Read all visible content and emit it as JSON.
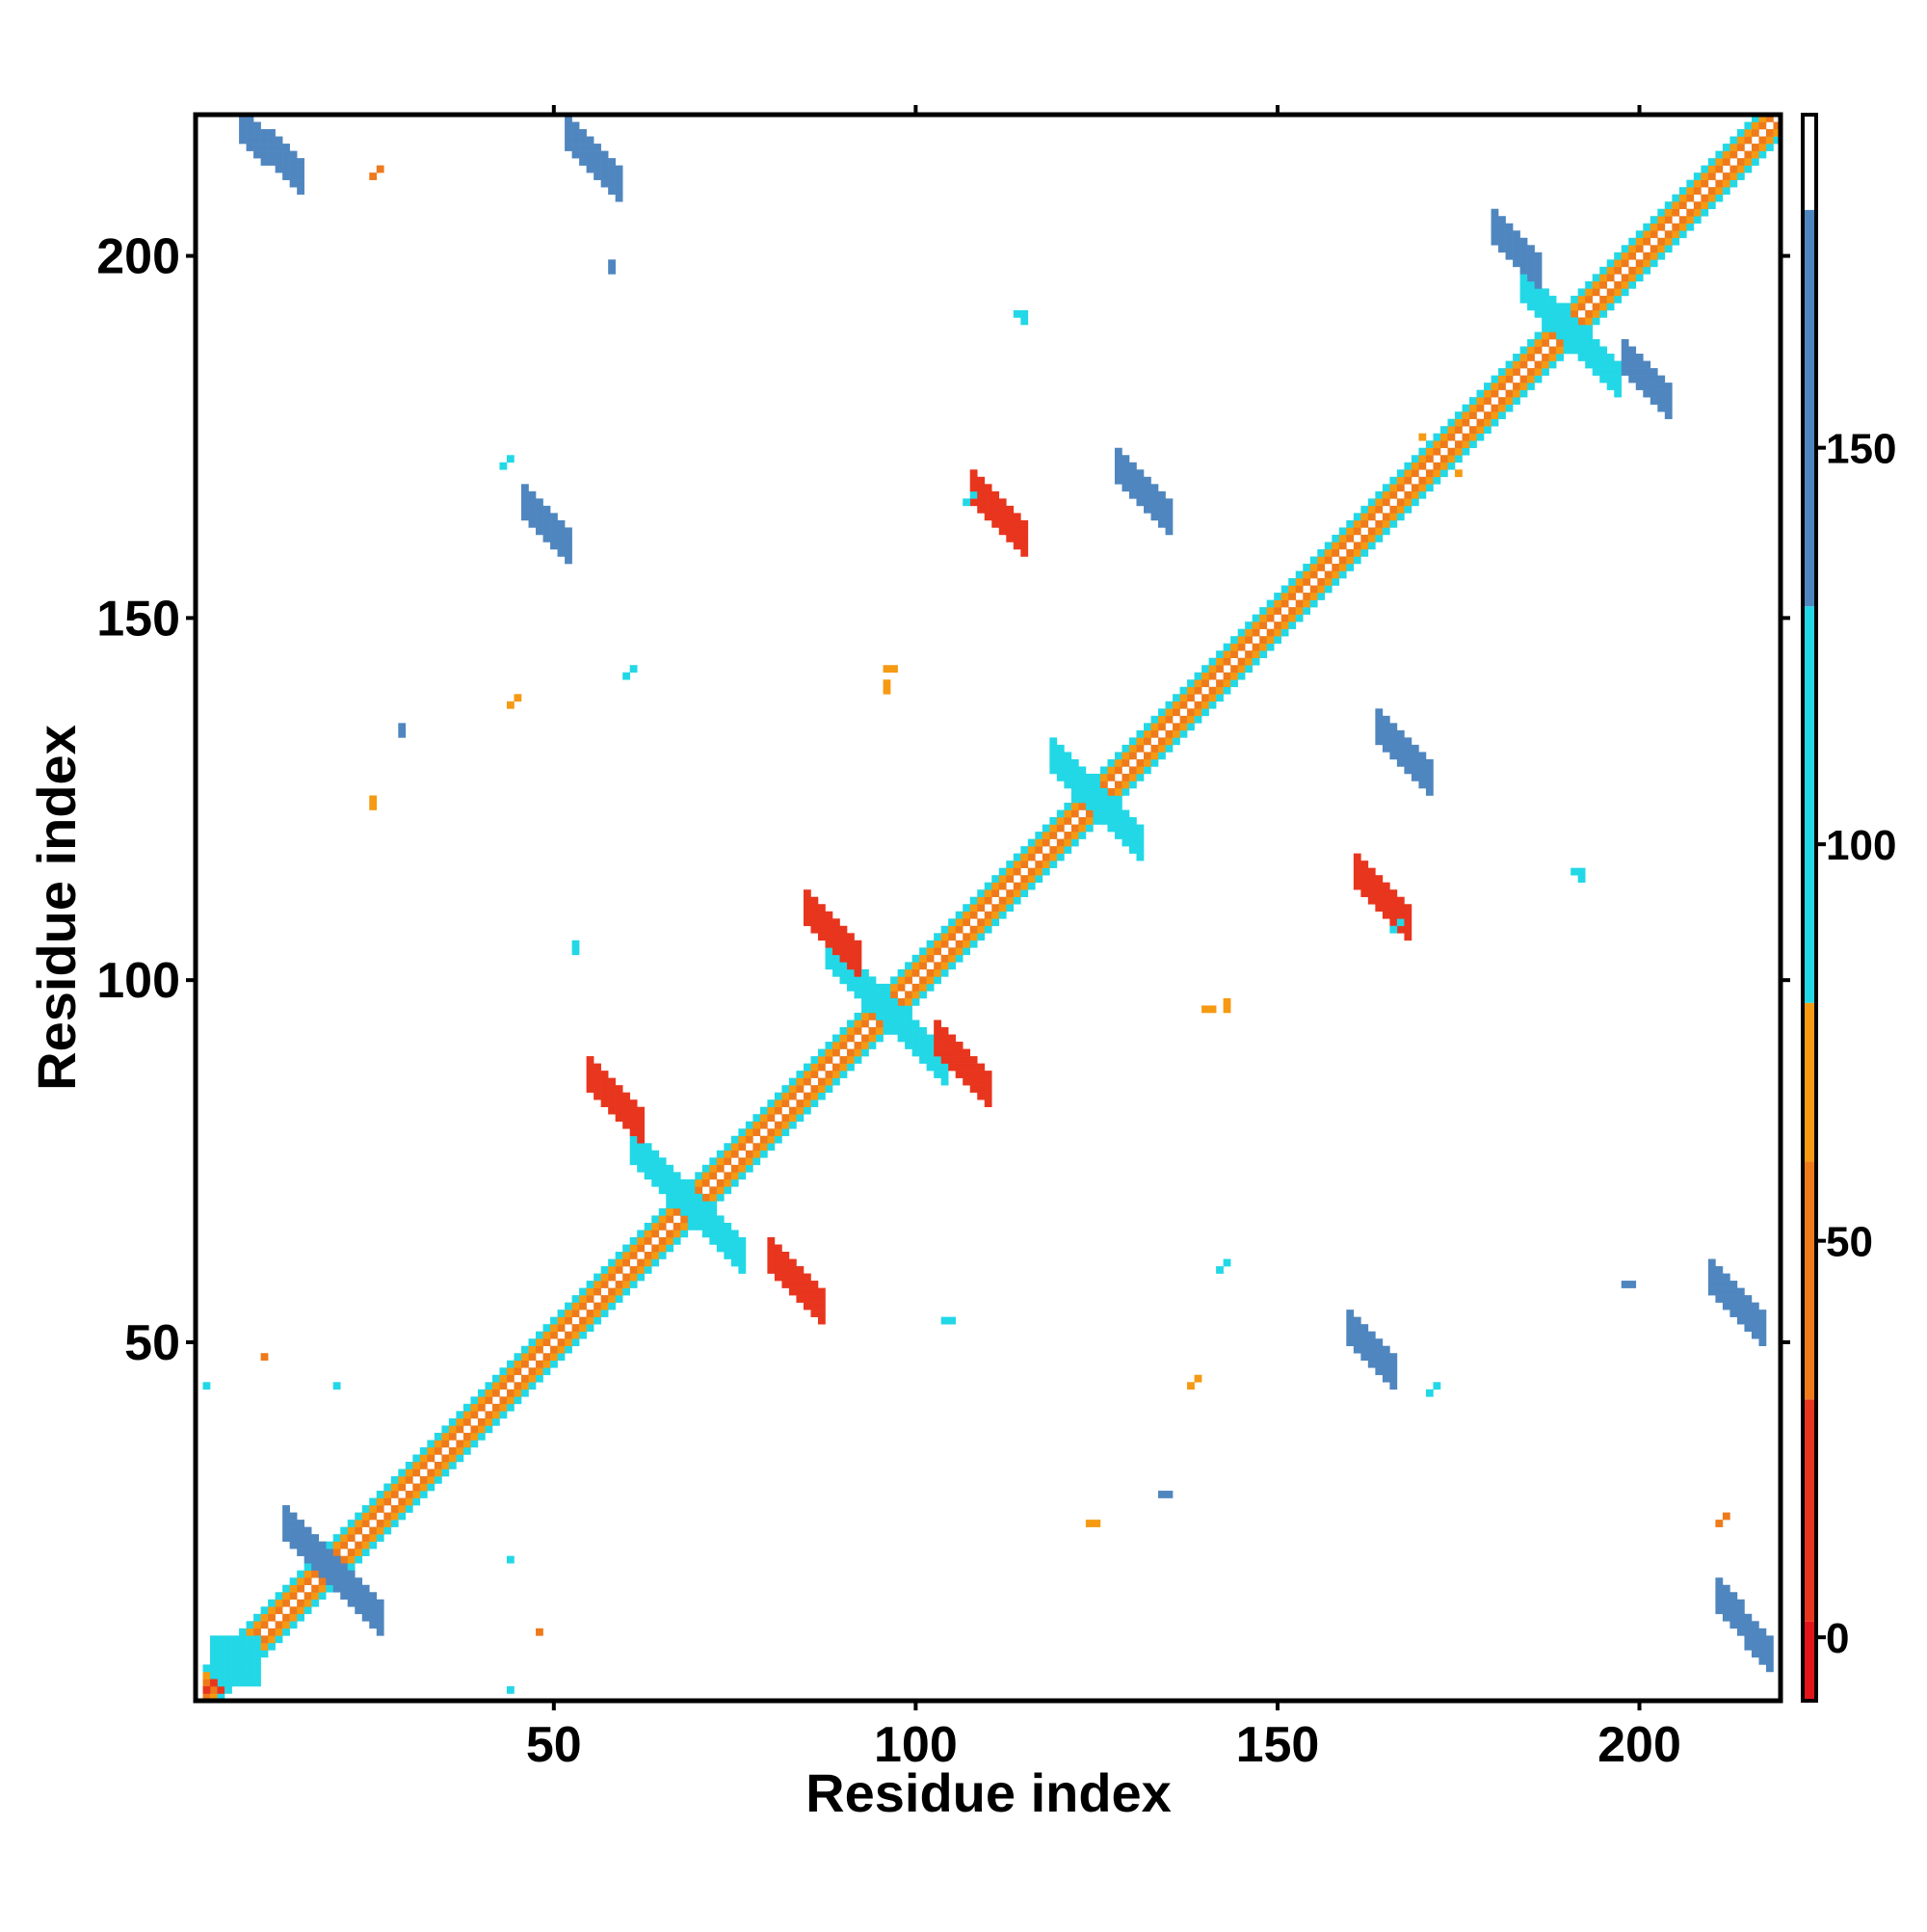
{
  "chart_data": {
    "type": "heatmap",
    "title": "",
    "xlabel": "Residue index",
    "ylabel": "Residue index",
    "xlim": [
      1,
      219
    ],
    "ylim": [
      1,
      219
    ],
    "x_ticks": [
      50,
      100,
      150,
      200
    ],
    "y_ticks": [
      50,
      100,
      150,
      200
    ],
    "colorbar": {
      "ticks": [
        0,
        50,
        100,
        150
      ],
      "range": [
        -8,
        192
      ],
      "bands": [
        {
          "from": -8,
          "to": 2,
          "color": "#e4141b"
        },
        {
          "from": 2,
          "to": 30,
          "color": "#e8351e"
        },
        {
          "from": 30,
          "to": 60,
          "color": "#ee7a1c"
        },
        {
          "from": 60,
          "to": 80,
          "color": "#f59a12"
        },
        {
          "from": 80,
          "to": 130,
          "color": "#22d8e6"
        },
        {
          "from": 130,
          "to": 180,
          "color": "#4f86bf"
        },
        {
          "from": 180,
          "to": 192,
          "color": "#ffffff"
        }
      ]
    },
    "grid": false,
    "legend": "colorbar-right",
    "diagonal": {
      "start": 2,
      "end": 219,
      "band_values": [
        5,
        45,
        70,
        100
      ]
    },
    "features": [
      {
        "shape": "anti",
        "i0": 13,
        "i1": 26,
        "j": 19,
        "value": 150,
        "width": 2
      },
      {
        "shape": "block",
        "i0": 3,
        "i1": 9,
        "j0": 3,
        "j1": 9,
        "value": 105
      },
      {
        "shape": "anti",
        "i0": 61,
        "i1": 76,
        "j": 69,
        "value": 115,
        "width": 2
      },
      {
        "shape": "anti",
        "i0": 88,
        "i1": 104,
        "j": 96,
        "value": 115,
        "width": 2
      },
      {
        "shape": "anti",
        "i0": 119,
        "i1": 131,
        "j": 125,
        "value": 115,
        "width": 2
      },
      {
        "shape": "anti",
        "i0": 184,
        "i1": 197,
        "j": 190,
        "value": 110,
        "width": 2
      },
      {
        "shape": "band",
        "i0": 7,
        "i1": 15,
        "j0": 211,
        "j1": 218,
        "value": 150,
        "width": 2
      },
      {
        "shape": "band",
        "i0": 52,
        "i1": 59,
        "j0": 210,
        "j1": 217,
        "value": 150,
        "width": 2
      },
      {
        "shape": "band",
        "i0": 210,
        "i1": 217,
        "j0": 52,
        "j1": 59,
        "value": 150,
        "width": 2
      },
      {
        "shape": "band",
        "i0": 211,
        "i1": 218,
        "j0": 7,
        "j1": 15,
        "value": 150,
        "width": 2
      },
      {
        "shape": "band",
        "i0": 46,
        "i1": 52,
        "j0": 160,
        "j1": 166,
        "value": 145,
        "width": 2
      },
      {
        "shape": "band",
        "i0": 160,
        "i1": 166,
        "j0": 46,
        "j1": 52,
        "value": 145,
        "width": 2
      },
      {
        "shape": "band",
        "i0": 128,
        "i1": 135,
        "j0": 164,
        "j1": 171,
        "value": 150,
        "width": 2
      },
      {
        "shape": "band",
        "i0": 164,
        "i1": 171,
        "j0": 128,
        "j1": 135,
        "value": 150,
        "width": 2
      },
      {
        "shape": "band",
        "i0": 180,
        "i1": 186,
        "j0": 198,
        "j1": 204,
        "value": 145,
        "width": 2
      },
      {
        "shape": "band",
        "i0": 198,
        "i1": 204,
        "j0": 180,
        "j1": 186,
        "value": 145,
        "width": 2
      },
      {
        "shape": "band",
        "i0": 103,
        "i1": 110,
        "j0": 85,
        "j1": 92,
        "value": 10,
        "width": 2
      },
      {
        "shape": "band",
        "i0": 85,
        "i1": 92,
        "j0": 103,
        "j1": 110,
        "value": 10,
        "width": 2
      },
      {
        "shape": "band",
        "i0": 80,
        "i1": 87,
        "j0": 55,
        "j1": 62,
        "value": 10,
        "width": 2
      },
      {
        "shape": "band",
        "i0": 55,
        "i1": 62,
        "j0": 80,
        "j1": 87,
        "value": 10,
        "width": 2
      },
      {
        "shape": "band",
        "i0": 161,
        "i1": 168,
        "j0": 108,
        "j1": 115,
        "value": 10,
        "width": 2
      },
      {
        "shape": "band",
        "i0": 108,
        "i1": 115,
        "j0": 161,
        "j1": 168,
        "value": 10,
        "width": 2
      }
    ],
    "points": [
      [
        2,
        2,
        5
      ],
      [
        3,
        3,
        10
      ],
      [
        4,
        2,
        20
      ],
      [
        44,
        2,
        105
      ],
      [
        2,
        44,
        105
      ],
      [
        58,
        198,
        150
      ],
      [
        58,
        199,
        150
      ],
      [
        198,
        58,
        150
      ],
      [
        199,
        58,
        150
      ],
      [
        114,
        192,
        110
      ],
      [
        115,
        192,
        110
      ],
      [
        192,
        114,
        110
      ],
      [
        192,
        115,
        110
      ],
      [
        124,
        25,
        60
      ],
      [
        125,
        25,
        60
      ],
      [
        25,
        124,
        60
      ],
      [
        25,
        125,
        60
      ],
      [
        138,
        44,
        60
      ],
      [
        139,
        45,
        60
      ],
      [
        44,
        138,
        60
      ],
      [
        45,
        139,
        60
      ],
      [
        171,
        43,
        100
      ],
      [
        172,
        44,
        100
      ],
      [
        43,
        171,
        100
      ],
      [
        44,
        172,
        100
      ],
      [
        140,
        96,
        60
      ],
      [
        141,
        96,
        60
      ],
      [
        96,
        140,
        60
      ],
      [
        96,
        141,
        60
      ],
      [
        104,
        53,
        100
      ],
      [
        105,
        53,
        100
      ],
      [
        53,
        104,
        100
      ],
      [
        53,
        105,
        100
      ],
      [
        96,
        143,
        60
      ],
      [
        97,
        143,
        60
      ],
      [
        143,
        96,
        60
      ],
      [
        143,
        97,
        60
      ],
      [
        211,
        25,
        40
      ],
      [
        212,
        26,
        40
      ],
      [
        25,
        211,
        40
      ],
      [
        26,
        212,
        40
      ],
      [
        29,
        134,
        145
      ],
      [
        29,
        135,
        145
      ],
      [
        134,
        29,
        145
      ],
      [
        135,
        29,
        145
      ],
      [
        60,
        142,
        100
      ],
      [
        61,
        143,
        100
      ],
      [
        142,
        60,
        100
      ],
      [
        143,
        61,
        100
      ],
      [
        107,
        166,
        100
      ],
      [
        108,
        167,
        100
      ],
      [
        166,
        107,
        100
      ],
      [
        167,
        108,
        100
      ],
      [
        44,
        20,
        100
      ],
      [
        20,
        44,
        100
      ],
      [
        10,
        48,
        40
      ],
      [
        48,
        10,
        40
      ],
      [
        191,
        115,
        110
      ],
      [
        115,
        191,
        110
      ],
      [
        175,
        170,
        60
      ],
      [
        170,
        175,
        60
      ]
    ]
  }
}
